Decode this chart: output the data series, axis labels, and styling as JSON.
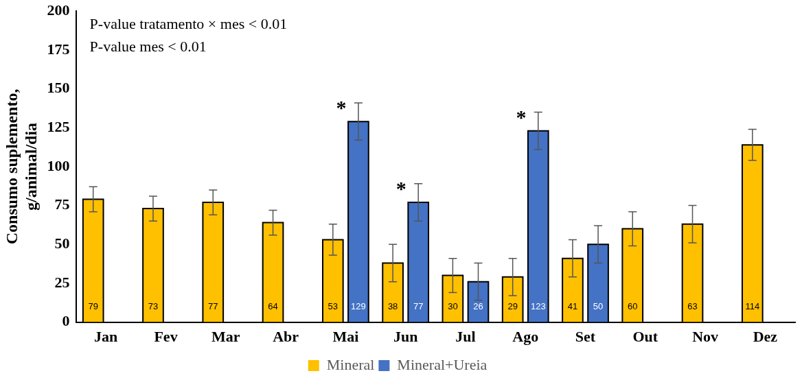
{
  "chart_data": {
    "type": "bar",
    "ylabel": "Consumo suplemento, g/animal/dia",
    "categories": [
      "Jan",
      "Fev",
      "Mar",
      "Abr",
      "Mai",
      "Jun",
      "Jul",
      "Ago",
      "Set",
      "Out",
      "Nov",
      "Dez"
    ],
    "series": [
      {
        "name": "Mineral",
        "color": "#ffc000",
        "values": [
          79,
          73,
          77,
          64,
          53,
          38,
          30,
          29,
          41,
          60,
          63,
          114
        ],
        "errors": [
          8,
          8,
          8,
          8,
          10,
          12,
          11,
          12,
          12,
          11,
          12,
          10
        ]
      },
      {
        "name": "Mineral+Ureia",
        "color": "#4472c4",
        "values": [
          null,
          null,
          null,
          null,
          129,
          77,
          26,
          123,
          50,
          null,
          null,
          null
        ],
        "errors": [
          null,
          null,
          null,
          null,
          12,
          12,
          12,
          12,
          12,
          null,
          null,
          null
        ]
      }
    ],
    "ylim": [
      0,
      200
    ],
    "yticks": [
      0,
      25,
      50,
      75,
      100,
      125,
      150,
      175,
      200
    ],
    "grid": false,
    "legend": "bottom",
    "data_labels": true,
    "annotations": [
      "P-value tratamento × mes < 0.01",
      "P-value mes < 0.01",
      "*",
      "*",
      "*"
    ]
  }
}
